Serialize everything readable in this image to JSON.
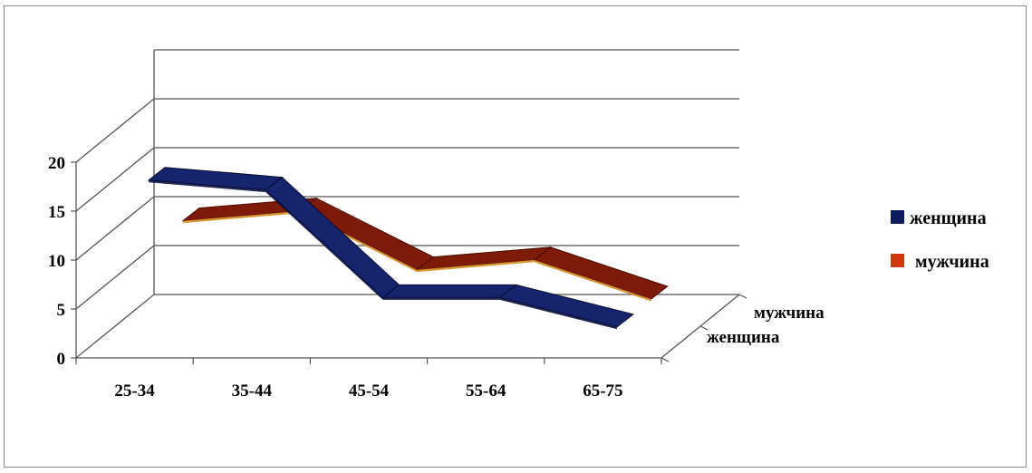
{
  "chart_data": {
    "type": "line",
    "style": "3d-ribbon",
    "categories": [
      "25-34",
      "35-44",
      "45-54",
      "55-64",
      "65-75"
    ],
    "series": [
      {
        "name": "женщина",
        "values": [
          17,
          16,
          5,
          5,
          2
        ],
        "color": "#0d1a5e"
      },
      {
        "name": "мужчина",
        "values": [
          10,
          11,
          5,
          6,
          2
        ],
        "color": "#7a1608"
      }
    ],
    "yticks": [
      "0",
      "5",
      "10",
      "15",
      "20"
    ],
    "ylim": [
      0,
      25
    ],
    "grid": true,
    "legend_position": "right",
    "legend": [
      {
        "label": "женщина",
        "color": "#0d1a5e"
      },
      {
        "label": "мужчина",
        "color": "#cc3a0e"
      }
    ],
    "depth_labels": [
      "мужчина",
      "женщина"
    ]
  }
}
